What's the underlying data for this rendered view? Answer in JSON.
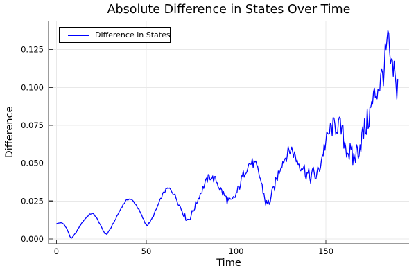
{
  "chart_data": {
    "type": "line",
    "title": "Absolute Difference in States Over Time",
    "xlabel": "Time",
    "ylabel": "Difference",
    "grid": true,
    "legend": {
      "position": "top-left",
      "entries": [
        {
          "label": "Difference in States",
          "color": "#0000ff"
        }
      ]
    },
    "x_ticks": [
      0,
      50,
      100,
      150
    ],
    "x_tick_labels": [
      "0",
      "50",
      "100",
      "150"
    ],
    "y_ticks": [
      0.0,
      0.025,
      0.05,
      0.075,
      0.1,
      0.125
    ],
    "y_tick_labels": [
      "0.000",
      "0.025",
      "0.050",
      "0.075",
      "0.100",
      "0.125"
    ],
    "xlim": [
      -4.4,
      196.3
    ],
    "ylim": [
      -0.0032,
      0.144
    ],
    "colors": {
      "line": "#0000ff",
      "grid": "#e8e8e8",
      "spine": "#383838",
      "text": "#000000",
      "background": "#ffffff"
    },
    "series": [
      {
        "name": "Difference in States",
        "color": "#0000ff",
        "sample_step": 0.5,
        "keypoints": [
          [
            0,
            0.01
          ],
          [
            2,
            0.0106
          ],
          [
            4,
            0.0098
          ],
          [
            6,
            0.0062
          ],
          [
            8,
            0.0008
          ],
          [
            10,
            0.0028
          ],
          [
            13,
            0.0085
          ],
          [
            16,
            0.0133
          ],
          [
            19,
            0.0165
          ],
          [
            21,
            0.016
          ],
          [
            23,
            0.0125
          ],
          [
            25,
            0.0078
          ],
          [
            27.5,
            0.0032
          ],
          [
            29,
            0.005
          ],
          [
            32,
            0.011
          ],
          [
            35,
            0.018
          ],
          [
            38,
            0.024
          ],
          [
            40,
            0.0262
          ],
          [
            42,
            0.0256
          ],
          [
            44,
            0.023
          ],
          [
            46,
            0.019
          ],
          [
            48,
            0.014
          ],
          [
            50,
            0.0095
          ],
          [
            52,
            0.011
          ],
          [
            55,
            0.018
          ],
          [
            58,
            0.026
          ],
          [
            60,
            0.031
          ],
          [
            62,
            0.0332
          ],
          [
            64,
            0.032
          ],
          [
            66,
            0.0285
          ],
          [
            68,
            0.0235
          ],
          [
            70,
            0.0185
          ],
          [
            72,
            0.014
          ],
          [
            73.5,
            0.013
          ],
          [
            75,
            0.016
          ],
          [
            78,
            0.024
          ],
          [
            81,
            0.032
          ],
          [
            83,
            0.037
          ],
          [
            85,
            0.0408
          ],
          [
            87,
            0.04
          ],
          [
            89,
            0.0382
          ],
          [
            91,
            0.0335
          ],
          [
            93,
            0.0295
          ],
          [
            95,
            0.026
          ],
          [
            97,
            0.024
          ],
          [
            99,
            0.027
          ],
          [
            101,
            0.032
          ],
          [
            103,
            0.039
          ],
          [
            105,
            0.045
          ],
          [
            107,
            0.049
          ],
          [
            109,
            0.05
          ],
          [
            111,
            0.048
          ],
          [
            113,
            0.042
          ],
          [
            115,
            0.032
          ],
          [
            117,
            0.023
          ],
          [
            119,
            0.026
          ],
          [
            121,
            0.033
          ],
          [
            123,
            0.041
          ],
          [
            125,
            0.049
          ],
          [
            127,
            0.053
          ],
          [
            129,
            0.057
          ],
          [
            131,
            0.059
          ],
          [
            133,
            0.054
          ],
          [
            135,
            0.05
          ],
          [
            137,
            0.048
          ],
          [
            139,
            0.044
          ],
          [
            141,
            0.041
          ],
          [
            143,
            0.043
          ],
          [
            145,
            0.042
          ],
          [
            147,
            0.05
          ],
          [
            149,
            0.06
          ],
          [
            151,
            0.067
          ],
          [
            153,
            0.073
          ],
          [
            155,
            0.074
          ],
          [
            157,
            0.075
          ],
          [
            159,
            0.07
          ],
          [
            161,
            0.062
          ],
          [
            163,
            0.057
          ],
          [
            165,
            0.053
          ],
          [
            167,
            0.057
          ],
          [
            169,
            0.063
          ],
          [
            171,
            0.07
          ],
          [
            173,
            0.077
          ],
          [
            175,
            0.085
          ],
          [
            177,
            0.094
          ],
          [
            179,
            0.1
          ],
          [
            181,
            0.106
          ],
          [
            183,
            0.118
          ],
          [
            184.5,
            0.13
          ],
          [
            186,
            0.115
          ],
          [
            187,
            0.108
          ],
          [
            188,
            0.112
          ],
          [
            189,
            0.098
          ],
          [
            190,
            0.103
          ]
        ],
        "noise_amplitude_anchors": [
          [
            0,
            0.0002
          ],
          [
            40,
            0.0005
          ],
          [
            55,
            0.0008
          ],
          [
            70,
            0.0018
          ],
          [
            85,
            0.0025
          ],
          [
            95,
            0.0032
          ],
          [
            110,
            0.0035
          ],
          [
            120,
            0.0038
          ],
          [
            130,
            0.0042
          ],
          [
            140,
            0.0052
          ],
          [
            150,
            0.006
          ],
          [
            160,
            0.008
          ],
          [
            168,
            0.0085
          ],
          [
            175,
            0.0095
          ],
          [
            182,
            0.0115
          ],
          [
            187,
            0.011
          ],
          [
            190,
            0.0085
          ]
        ]
      }
    ]
  }
}
